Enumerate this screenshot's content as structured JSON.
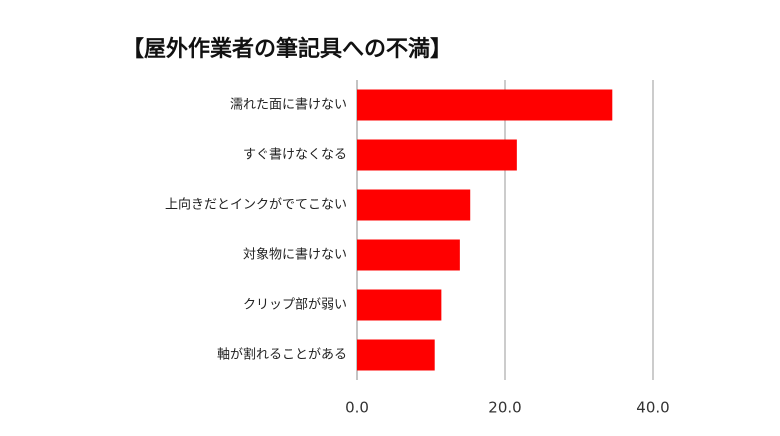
{
  "chart_data": {
    "type": "barh",
    "title": "【屋外作業者の筆記具への不満】",
    "categories": [
      "濡れた面に書けない",
      "すぐ書けなくなる",
      "上向きだとインクがでてこない",
      "対象物に書けない",
      "クリップ部が弱い",
      "軸が割れることがある"
    ],
    "values": [
      34.5,
      21.6,
      15.3,
      13.9,
      11.4,
      10.5
    ],
    "color": "#ff0000",
    "xlim": [
      0,
      40
    ],
    "xticks": [
      {
        "value": 0,
        "label": "0.0"
      },
      {
        "value": 20,
        "label": "20.0"
      },
      {
        "value": 40,
        "label": "40.0"
      }
    ],
    "grid": true
  }
}
